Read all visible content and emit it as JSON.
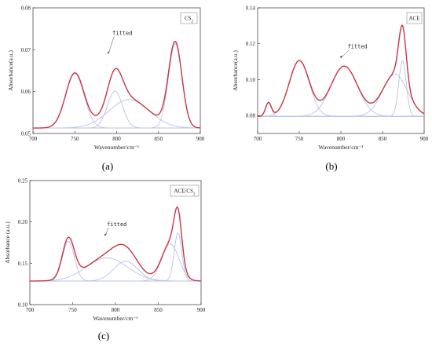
{
  "chart_data": [
    {
      "type": "line",
      "panel_label": "(a)",
      "legend": "CS₂",
      "annotation": "fitted",
      "xlabel": "Wavenumber/cm⁻¹",
      "ylabel": "Absorbance(a.u.)",
      "xlim": [
        700,
        900
      ],
      "ylim": [
        0.05,
        0.08
      ],
      "xticks": [
        "700",
        "750",
        "800",
        "850",
        "900"
      ],
      "yticks": [
        "0.05",
        "0.06",
        "0.07",
        "0.08"
      ],
      "baseline": 0.0513,
      "components": [
        {
          "center": 750,
          "amplitude": 0.013,
          "width": 11
        },
        {
          "center": 798,
          "amplitude": 0.0088,
          "width": 9
        },
        {
          "center": 815,
          "amplitude": 0.0068,
          "width": 24
        },
        {
          "center": 870,
          "amplitude": 0.0202,
          "width": 8
        }
      ]
    },
    {
      "type": "line",
      "panel_label": "(b)",
      "legend": "ACE",
      "annotation": "fitted",
      "xlabel": "Wavenumber/cm⁻¹",
      "ylabel": "Absorbance(a.u.)",
      "xlim": [
        700,
        900
      ],
      "ylim": [
        0.07,
        0.14
      ],
      "xticks": [
        "700",
        "750",
        "800",
        "850",
        "900"
      ],
      "yticks": [
        "0.08",
        "0.10",
        "0.12",
        "0.14"
      ],
      "baseline": 0.0795,
      "components": [
        {
          "center": 713,
          "amplitude": 0.0075,
          "width": 3.5
        },
        {
          "center": 750,
          "amplitude": 0.031,
          "width": 12
        },
        {
          "center": 804,
          "amplitude": 0.028,
          "width": 16
        },
        {
          "center": 865,
          "amplitude": 0.0235,
          "width": 15
        },
        {
          "center": 874,
          "amplitude": 0.031,
          "width": 4.5
        }
      ]
    },
    {
      "type": "line",
      "panel_label": "(c)",
      "legend": "ACE/CS₂",
      "annotation": "fitted",
      "xlabel": "Wavenumber/cm⁻¹",
      "ylabel": "Absorbance (a.u.)",
      "xlim": [
        700,
        900
      ],
      "ylim": [
        0.1,
        0.25
      ],
      "xticks": [
        "700",
        "750",
        "800",
        "850",
        "900"
      ],
      "yticks": [
        "0.10",
        "0.15",
        "0.20",
        "0.25"
      ],
      "baseline": 0.1285,
      "components": [
        {
          "center": 745,
          "amplitude": 0.048,
          "width": 7
        },
        {
          "center": 790,
          "amplitude": 0.028,
          "width": 24
        },
        {
          "center": 812,
          "amplitude": 0.024,
          "width": 14
        },
        {
          "center": 864,
          "amplitude": 0.045,
          "width": 10
        },
        {
          "center": 873,
          "amplitude": 0.058,
          "width": 4.5
        }
      ]
    }
  ],
  "colors": {
    "fit": "#cc3344",
    "components": "#b9c3e6",
    "baseline": "#8fa0d8",
    "axis": "#333333"
  }
}
